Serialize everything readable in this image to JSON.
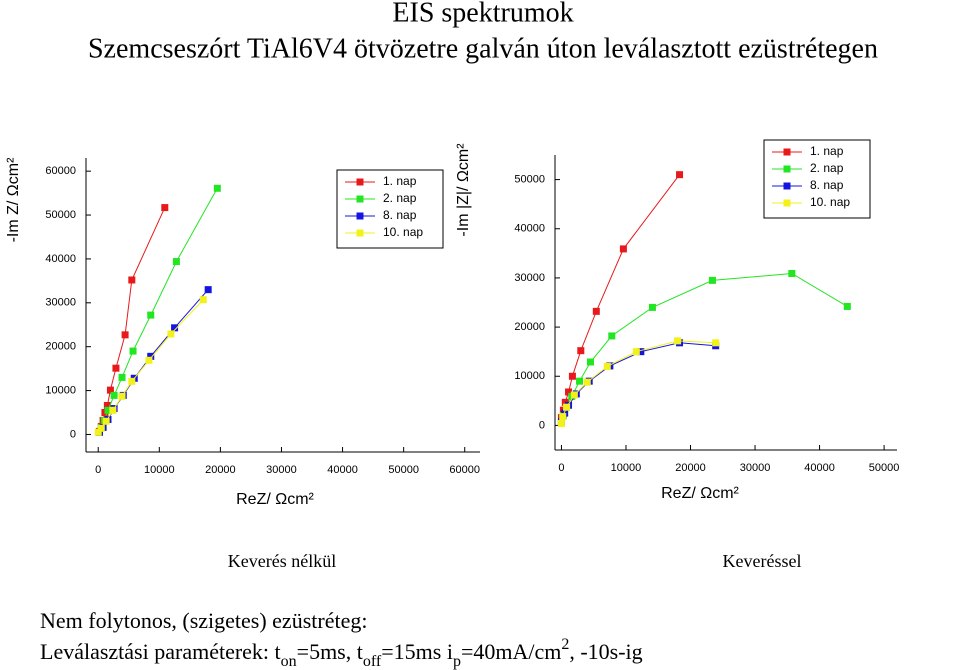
{
  "header": {
    "title": "EIS spektrumok",
    "subtitle": "Szemcseszórt TiAl6V4 ötvözetre galván úton leválasztott ezüstrétegen"
  },
  "chart_data": [
    {
      "type": "scatter-line",
      "caption": "Keverés nélkül",
      "x_label": "ReZ/ Ωcm²",
      "y_label": "-Im Z/ Ωcm²",
      "xlim": [
        -2000,
        62500
      ],
      "ylim": [
        -4000,
        63000
      ],
      "xticks": [
        0,
        10000,
        20000,
        30000,
        40000,
        50000,
        60000
      ],
      "yticks": [
        0,
        10000,
        20000,
        30000,
        40000,
        50000,
        60000
      ],
      "legend": "top-right",
      "grid": false,
      "series": [
        {
          "name": "1. nap",
          "color": "#e8191b",
          "x": [
            200,
            500,
            800,
            1100,
            1500,
            2000,
            2900,
            4400,
            5500,
            10900
          ],
          "values": [
            700,
            1800,
            3200,
            5000,
            6600,
            10100,
            15100,
            22700,
            35200,
            51700
          ]
        },
        {
          "name": "2. nap",
          "color": "#22e622",
          "x": [
            200,
            500,
            1000,
            1600,
            2600,
            3900,
            5700,
            8600,
            12800,
            19500
          ],
          "values": [
            500,
            1600,
            3200,
            5500,
            8900,
            13000,
            19000,
            27200,
            39400,
            56100
          ]
        },
        {
          "name": "8. nap",
          "color": "#1414e0",
          "x": [
            200,
            800,
            1600,
            2600,
            4100,
            5900,
            8600,
            12500,
            18000
          ],
          "values": [
            500,
            1600,
            3400,
            5900,
            8900,
            12800,
            17800,
            24300,
            33000
          ]
        },
        {
          "name": "10. nap",
          "color": "#f2f21a",
          "x": [
            0,
            500,
            1300,
            2400,
            3900,
            5500,
            8300,
            11900,
            17200
          ],
          "values": [
            500,
            1400,
            3000,
            5500,
            8700,
            12100,
            16900,
            22900,
            30700
          ]
        }
      ]
    },
    {
      "type": "scatter-line",
      "caption": "Keveréssel",
      "x_label": "ReZ/ Ωcm²",
      "y_label": "-Im |Z|/ Ωcm²",
      "xlim": [
        -1000,
        52000
      ],
      "ylim": [
        -5000,
        55000
      ],
      "xticks": [
        0,
        10000,
        20000,
        30000,
        40000,
        50000
      ],
      "yticks": [
        0,
        10000,
        20000,
        30000,
        40000,
        50000
      ],
      "legend": "top-right",
      "grid": false,
      "series": [
        {
          "name": "1. nap",
          "color": "#e8191b",
          "x": [
            0,
            0,
            300,
            600,
            1100,
            1700,
            3000,
            5400,
            9600,
            18300
          ],
          "values": [
            600,
            1600,
            3100,
            4700,
            6800,
            10000,
            15200,
            23200,
            35900,
            51000
          ]
        },
        {
          "name": "2. nap",
          "color": "#22e622",
          "x": [
            0,
            300,
            800,
            1600,
            2800,
            4500,
            7800,
            14100,
            23400,
            35700,
            44300
          ],
          "values": [
            600,
            2000,
            3700,
            5900,
            9000,
            12900,
            18200,
            24000,
            29500,
            30900,
            24200
          ]
        },
        {
          "name": "8. nap",
          "color": "#1414e0",
          "x": [
            0,
            500,
            1100,
            2300,
            4300,
            7500,
            12300,
            18300,
            23900
          ],
          "values": [
            800,
            2500,
            4100,
            6400,
            9000,
            12100,
            15000,
            16800,
            16200
          ]
        },
        {
          "name": "10. nap",
          "color": "#f2f21a",
          "x": [
            0,
            200,
            800,
            2000,
            4000,
            7100,
            11600,
            18000,
            23900
          ],
          "values": [
            400,
            1800,
            3700,
            6200,
            8800,
            12000,
            15000,
            17200,
            16800
          ]
        }
      ]
    }
  ],
  "footnote": {
    "line1": "Nem folytonos, (szigetes) ezüstréteg:",
    "line2": [
      {
        "text": "Leválasztási paraméterek: t",
        "style": "normal"
      },
      {
        "text": "on",
        "style": "sub"
      },
      {
        "text": "=5ms, t",
        "style": "normal"
      },
      {
        "text": "off",
        "style": "sub"
      },
      {
        "text": "=15ms i",
        "style": "normal"
      },
      {
        "text": "p",
        "style": "sub"
      },
      {
        "text": "=40mA/cm",
        "style": "normal"
      },
      {
        "text": "2",
        "style": "sup"
      },
      {
        "text": ", -10s-ig",
        "style": "normal"
      }
    ]
  }
}
